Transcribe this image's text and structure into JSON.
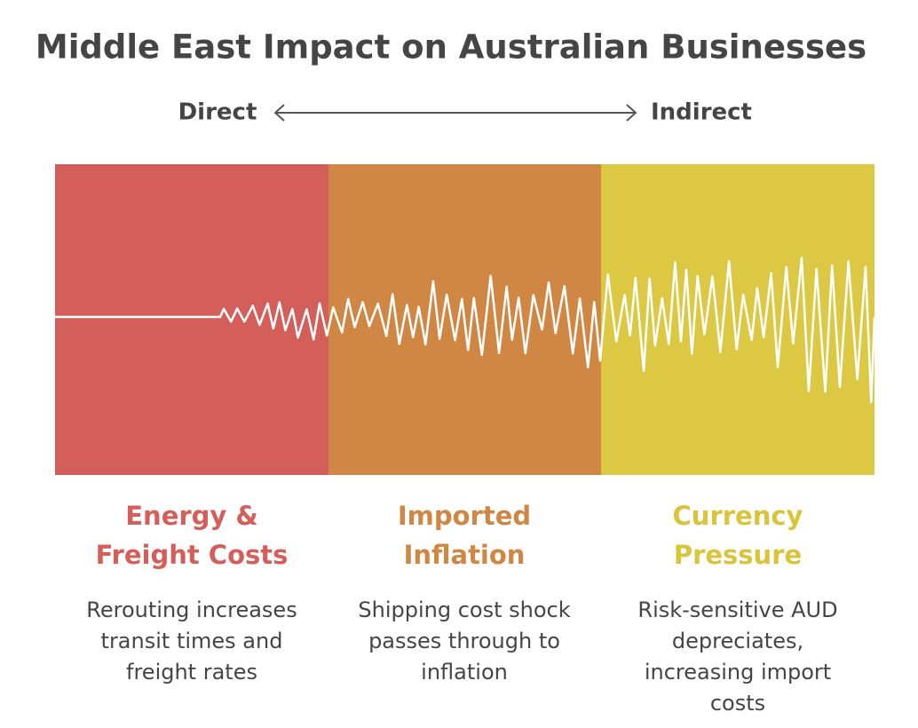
{
  "title": "Middle East Impact on Australian Businesses",
  "scale": {
    "left": "Direct",
    "right": "Indirect"
  },
  "sections": [
    {
      "heading": [
        "Energy &",
        "Freight Costs"
      ],
      "description": [
        "Rerouting increases",
        "transit times and",
        "freight rates"
      ]
    },
    {
      "heading": [
        "Imported",
        "Inflation"
      ],
      "description": [
        "Shipping cost shock",
        "passes through to",
        "inflation"
      ]
    },
    {
      "heading": [
        "Currency",
        "Pressure"
      ],
      "description": [
        "Risk-sensitive AUD",
        "depreciates,",
        "increasing import",
        "costs"
      ]
    }
  ]
}
